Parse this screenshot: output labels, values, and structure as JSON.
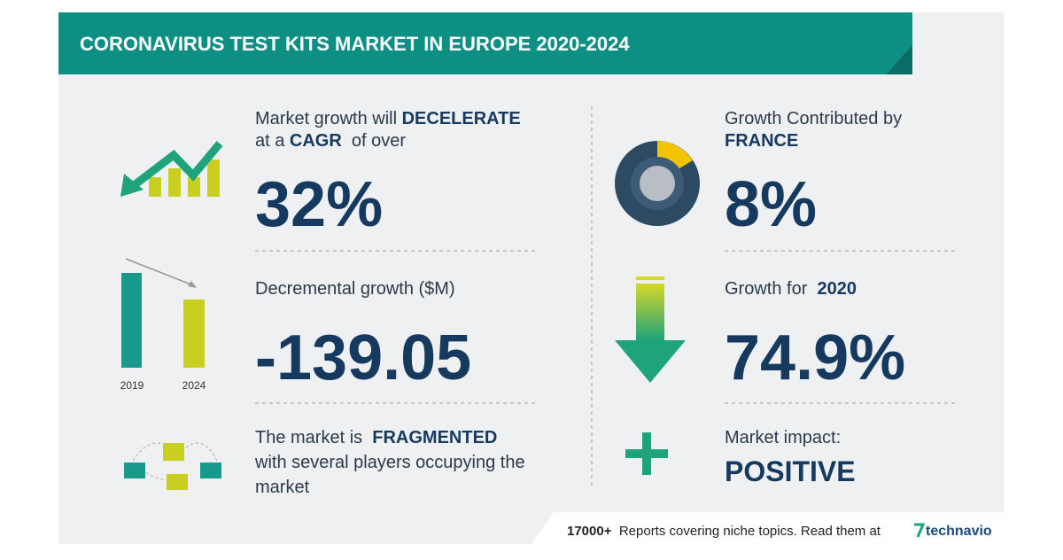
{
  "header": {
    "title": "CORONAVIRUS TEST KITS MARKET IN EUROPE 2020-2024"
  },
  "panels": [
    {
      "lines": [
        [
          "Market growth will ",
          "DECELERATE"
        ],
        [
          "at a ",
          "CAGR",
          "  of over"
        ]
      ],
      "value": "32%"
    },
    {
      "lines": [
        [
          "Decremental growth ($M)"
        ]
      ],
      "value": "-139.05",
      "icon_labels": [
        "2019",
        "2024"
      ]
    },
    {
      "lines": [
        [
          "The market is  ",
          "FRAGMENTED"
        ],
        [
          "with several players occupying the"
        ],
        [
          "market"
        ]
      ]
    },
    {
      "lines": [
        [
          "Growth Contributed by"
        ],
        [
          "",
          "FRANCE"
        ]
      ],
      "value": "8%"
    },
    {
      "lines": [
        [
          "Growth for  ",
          "2020"
        ]
      ],
      "value": "74.9%"
    },
    {
      "lines": [
        [
          "Market impact:"
        ]
      ],
      "value": "POSITIVE"
    }
  ],
  "footer": {
    "count": "17000+",
    "text": "Reports covering niche topics. Read them at",
    "brand": "technavio"
  }
}
